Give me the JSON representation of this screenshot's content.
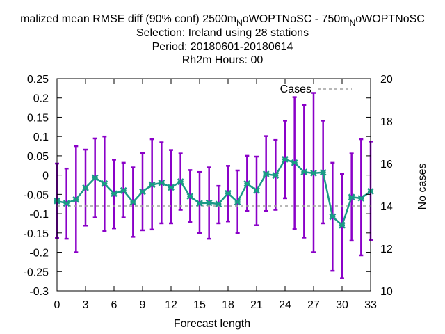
{
  "chart_data": {
    "type": "line",
    "title_lines": [
      "malized mean RMSE diff (90% conf) 2500m",
      "N",
      "oWOPTNoSC - 750m",
      "N",
      "oWOPTNoSC",
      "Selection: Ireland using    28 stations",
      "Period: 20180601-20180614",
      "Rh2m   Hours:  00"
    ],
    "xlabel": "Forecast length",
    "ylabel": "",
    "y2label": "No cases",
    "xlim": [
      0,
      33
    ],
    "ylim": [
      -0.3,
      0.25
    ],
    "y2lim": [
      10,
      20
    ],
    "x_ticks": [
      0,
      3,
      6,
      9,
      12,
      15,
      18,
      21,
      24,
      27,
      30,
      33
    ],
    "y_ticks": [
      -0.3,
      -0.25,
      -0.2,
      -0.15,
      -0.1,
      -0.05,
      0,
      0.05,
      0.1,
      0.15,
      0.2,
      0.25
    ],
    "y_tick_labels": [
      "-0.3",
      "-0.25",
      "-0.2",
      "-0.15",
      "-0.1",
      "-0.05",
      "0",
      "0.05",
      "0.1",
      "0.15",
      "0.2",
      "0.25"
    ],
    "y2_ticks": [
      10,
      12,
      14,
      16,
      18,
      20
    ],
    "legend": {
      "label": "Cases",
      "placement": "top-right"
    },
    "grid": false,
    "colors": {
      "line": "#1a9a86",
      "marker": "#1a9a86",
      "errorbar": "#8a00c8",
      "cases": "#a0a0a0"
    },
    "series": [
      {
        "x": [
          0,
          1,
          2,
          3,
          4,
          5,
          6,
          7,
          8,
          9,
          10,
          11,
          12,
          13,
          14,
          15,
          16,
          17,
          18,
          19,
          20,
          21,
          22,
          23,
          24,
          25,
          26,
          27,
          28,
          29,
          30,
          31,
          32,
          33
        ],
        "y": [
          -0.067,
          -0.073,
          -0.063,
          -0.033,
          -0.007,
          -0.022,
          -0.048,
          -0.04,
          -0.07,
          -0.043,
          -0.025,
          -0.02,
          -0.032,
          -0.017,
          -0.055,
          -0.073,
          -0.072,
          -0.075,
          -0.047,
          -0.07,
          -0.022,
          -0.04,
          0.003,
          -0.001,
          0.041,
          0.032,
          0.008,
          0.005,
          0.007,
          -0.108,
          -0.13,
          -0.057,
          -0.06,
          -0.042
        ],
        "err_low": [
          -0.163,
          -0.165,
          -0.2,
          -0.131,
          -0.11,
          -0.145,
          -0.138,
          -0.11,
          -0.16,
          -0.143,
          -0.141,
          -0.125,
          -0.125,
          -0.09,
          -0.122,
          -0.15,
          -0.165,
          -0.125,
          -0.12,
          -0.15,
          -0.093,
          -0.13,
          -0.093,
          -0.09,
          -0.06,
          -0.14,
          -0.162,
          -0.2,
          -0.125,
          -0.248,
          -0.267,
          -0.17,
          -0.208,
          -0.168
        ],
        "err_high": [
          0.03,
          0.017,
          0.075,
          0.066,
          0.095,
          0.1,
          0.04,
          0.032,
          0.02,
          0.057,
          0.093,
          0.085,
          0.065,
          0.056,
          0.013,
          0.008,
          0.02,
          -0.028,
          0.024,
          0.012,
          0.05,
          0.048,
          0.101,
          0.091,
          0.141,
          0.202,
          0.181,
          0.213,
          0.141,
          0.032,
          0.003,
          0.056,
          0.093,
          0.087
        ]
      }
    ],
    "cases": {
      "value": 14
    }
  }
}
